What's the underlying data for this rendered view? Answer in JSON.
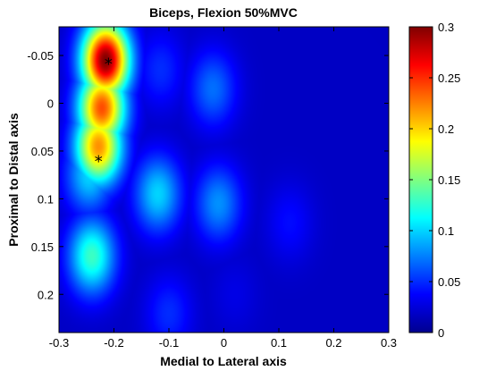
{
  "chart_data": {
    "type": "heatmap",
    "title": "Biceps, Flexion 50%MVC",
    "xlabel": "Medial to Lateral axis",
    "ylabel": "Proximal to Distal axis",
    "xlim": [
      -0.3,
      0.3
    ],
    "ylim": [
      -0.08,
      0.24
    ],
    "y_reversed": true,
    "x_ticks": [
      -0.3,
      -0.2,
      -0.1,
      0,
      0.1,
      0.2,
      0.3
    ],
    "x_tick_labels": [
      "-0.3",
      "-0.2",
      "-0.1",
      "0",
      "0.1",
      "0.2",
      "0.3"
    ],
    "y_ticks": [
      -0.05,
      0,
      0.05,
      0.1,
      0.15,
      0.2
    ],
    "y_tick_labels": [
      "-0.05",
      "0",
      "0.05",
      "0.1",
      "0.15",
      "0.2"
    ],
    "colorbar": {
      "min": 0,
      "max": 0.3,
      "ticks": [
        0,
        0.05,
        0.1,
        0.15,
        0.2,
        0.25,
        0.3
      ],
      "tick_labels": [
        "0",
        "0.05",
        "0.1",
        "0.15",
        "0.2",
        "0.25",
        "0.3"
      ],
      "colormap": "jet"
    },
    "intensity_blobs": [
      {
        "x": -0.215,
        "y": -0.045,
        "value": 0.3
      },
      {
        "x": -0.222,
        "y": 0.005,
        "value": 0.24
      },
      {
        "x": -0.228,
        "y": 0.045,
        "value": 0.22
      },
      {
        "x": -0.245,
        "y": 0.075,
        "value": 0.1
      },
      {
        "x": -0.24,
        "y": 0.16,
        "value": 0.13
      },
      {
        "x": -0.12,
        "y": 0.095,
        "value": 0.1
      },
      {
        "x": -0.01,
        "y": 0.105,
        "value": 0.08
      },
      {
        "x": -0.02,
        "y": -0.015,
        "value": 0.07
      },
      {
        "x": -0.115,
        "y": -0.035,
        "value": 0.05
      },
      {
        "x": -0.1,
        "y": 0.22,
        "value": 0.05
      },
      {
        "x": 0.12,
        "y": 0.125,
        "value": 0.04
      },
      {
        "x": 0.02,
        "y": 0.2,
        "value": 0.03
      }
    ],
    "base_value": 0.02,
    "markers": [
      {
        "x": -0.21,
        "y": -0.042,
        "symbol": "*"
      },
      {
        "x": -0.228,
        "y": 0.06,
        "symbol": "*"
      }
    ]
  }
}
